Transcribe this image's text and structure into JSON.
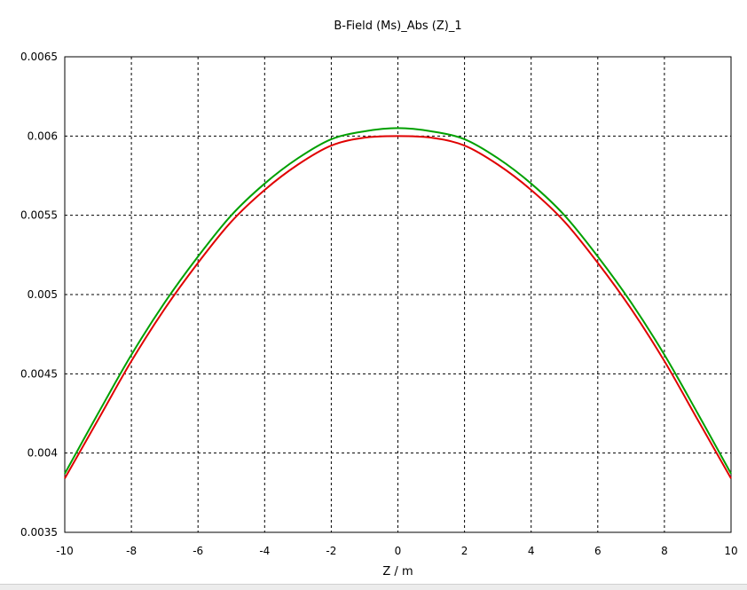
{
  "chart_data": {
    "type": "line",
    "title": "B-Field (Ms)_Abs (Z)_1",
    "xlabel": "Z / m",
    "ylabel": "",
    "xlim": [
      -10,
      10
    ],
    "ylim": [
      0.0035,
      0.0065
    ],
    "x_ticks": [
      "-10",
      "-8",
      "-6",
      "-4",
      "-2",
      "0",
      "2",
      "4",
      "6",
      "8",
      "10"
    ],
    "y_ticks": [
      "0.0035",
      "0.004",
      "0.0045",
      "0.005",
      "0.0055",
      "0.006",
      "0.0065"
    ],
    "grid": true,
    "grid_style": "dashed",
    "x": [
      -10,
      -9,
      -8,
      -7,
      -6,
      -5,
      -4,
      -3,
      -2,
      -1,
      0,
      1,
      2,
      3,
      4,
      5,
      6,
      7,
      8,
      9,
      10
    ],
    "series": [
      {
        "color": "#00a000",
        "values": [
          0.00387,
          0.00425,
          0.00462,
          0.00495,
          0.00524,
          0.0055,
          0.0057,
          0.00586,
          0.00598,
          0.00603,
          0.00605,
          0.00603,
          0.00598,
          0.00586,
          0.0057,
          0.0055,
          0.00524,
          0.00495,
          0.00462,
          0.00425,
          0.00387
        ]
      },
      {
        "color": "#e00000",
        "values": [
          0.00384,
          0.00421,
          0.00458,
          0.00491,
          0.0052,
          0.00546,
          0.00566,
          0.00582,
          0.00594,
          0.00599,
          0.006,
          0.00599,
          0.00594,
          0.00582,
          0.00566,
          0.00546,
          0.0052,
          0.00491,
          0.00458,
          0.00421,
          0.00384
        ]
      }
    ]
  }
}
